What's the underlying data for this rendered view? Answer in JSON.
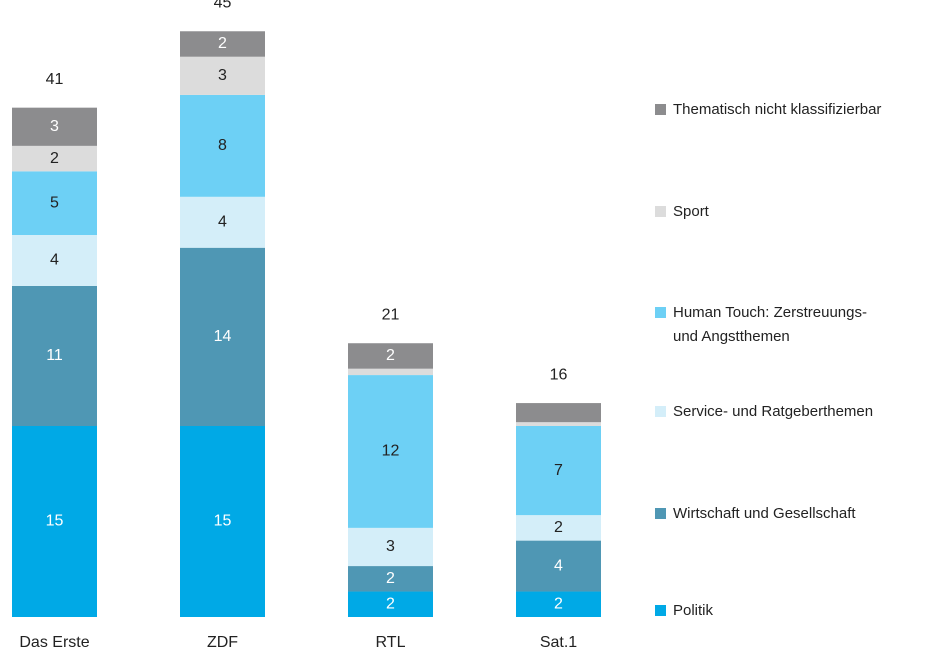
{
  "chart_data": {
    "type": "stacked_bar",
    "categories": [
      "Das Erste",
      "ZDF",
      "RTL",
      "Sat.1"
    ],
    "totals": [
      41,
      45,
      21,
      16
    ],
    "series": [
      {
        "name": "Politik",
        "color": "#00a9e6",
        "values": [
          15,
          15,
          2,
          2
        ],
        "value_labels": [
          "15",
          "15",
          "2",
          "2"
        ]
      },
      {
        "name": "Wirtschaft und Gesellschaft",
        "color": "#4f97b4",
        "values": [
          11,
          14,
          2,
          4
        ],
        "value_labels": [
          "11",
          "14",
          "2",
          "4"
        ]
      },
      {
        "name": "Service- und Ratgeberthemen",
        "color": "#d4eef9",
        "values": [
          4,
          4,
          3,
          2
        ],
        "value_labels": [
          "4",
          "4",
          "3",
          "2"
        ]
      },
      {
        "name": "Human Touch: Zerstreuungs-\nund Angstthemen",
        "color": "#6dd0f5",
        "values": [
          5,
          8,
          12,
          7
        ],
        "value_labels": [
          "5",
          "8",
          "12",
          "7"
        ]
      },
      {
        "name": "Sport",
        "color": "#dcdcdc",
        "values": [
          2,
          3,
          0.5,
          0.3
        ],
        "value_labels": [
          "2",
          "3",
          null,
          null
        ]
      },
      {
        "name": "Thematisch nicht klassifizierbar",
        "color": "#8c8c8e",
        "values": [
          3,
          2,
          2,
          1.5
        ],
        "value_labels": [
          "3",
          "2",
          "2",
          null
        ]
      }
    ]
  }
}
